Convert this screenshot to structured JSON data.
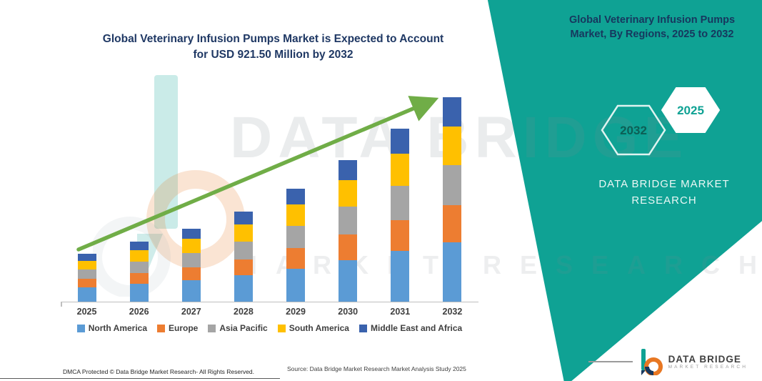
{
  "title": {
    "line1": "Global Veterinary Infusion Pumps Market is Expected to Account",
    "line2": "for USD 921.50 Million by 2032"
  },
  "side_panel": {
    "title": "Global Veterinary Infusion Pumps Market, By Regions, 2025 to 2032",
    "accent_color": "#0FA294",
    "hexagons": [
      {
        "label": "2032"
      },
      {
        "label": "2025"
      }
    ],
    "brand_line1": "DATA BRIDGE MARKET",
    "brand_line2": "RESEARCH"
  },
  "watermark": {
    "line1": "DATA BRIDGE",
    "line2": "MARKET RESEARCH"
  },
  "chart_data": {
    "type": "bar",
    "stacked": true,
    "title": "Global Veterinary Infusion Pumps Market, By Regions, 2025 to 2032",
    "unit": "USD Million",
    "categories": [
      "2025",
      "2026",
      "2027",
      "2028",
      "2029",
      "2030",
      "2031",
      "2032"
    ],
    "series": [
      {
        "name": "North America",
        "color": "#5B9BD5",
        "values": [
          65,
          80,
          98,
          120,
          150,
          188,
          228,
          268
        ]
      },
      {
        "name": "Europe",
        "color": "#ED7D31",
        "values": [
          38,
          48,
          58,
          72,
          92,
          115,
          140,
          166
        ]
      },
      {
        "name": "Asia Pacific",
        "color": "#A5A5A5",
        "values": [
          42,
          53,
          65,
          80,
          100,
          126,
          154,
          182
        ]
      },
      {
        "name": "South America",
        "color": "#FFC000",
        "values": [
          40,
          51,
          62,
          76,
          96,
          120,
          147,
          173
        ]
      },
      {
        "name": "Middle East and Africa",
        "color": "#3A62AD",
        "values": [
          30,
          38,
          47,
          57,
          72,
          91,
          111,
          132.5
        ]
      }
    ],
    "xlabel": "",
    "ylabel": "",
    "ylim": [
      0,
      1000
    ],
    "grid": false,
    "legend_position": "bottom",
    "annotations": [
      "Total market expected to reach USD 921.50 Million by 2032"
    ],
    "trend_arrow": true,
    "trend_arrow_color": "#70AD47"
  },
  "footer": {
    "dmca": "DMCA Protected © Data Bridge Market Research-  All Rights Reserved.",
    "source": "Source: Data Bridge Market Research  Market Analysis Study 2025"
  },
  "footer_brand": {
    "name": "DATA BRIDGE",
    "tagline": "MARKET RESEARCH"
  }
}
